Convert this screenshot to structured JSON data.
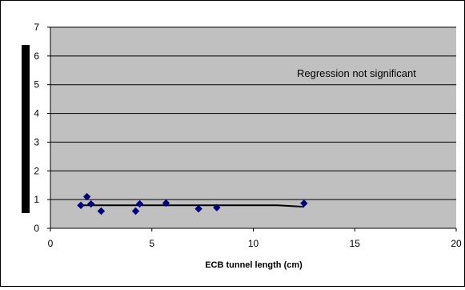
{
  "chart_data": {
    "type": "scatter",
    "title": "",
    "xlabel": "ECB tunnel length (cm)",
    "ylabel": "",
    "xlim": [
      0,
      20
    ],
    "ylim": [
      0,
      7
    ],
    "xticks": [
      "0",
      "5",
      "10",
      "15",
      "20"
    ],
    "yticks": [
      "0",
      "1",
      "2",
      "3",
      "4",
      "5",
      "6",
      "7"
    ],
    "grid": "horizontal",
    "legend": "none",
    "annotation": "Regression not significant",
    "colors": {
      "plot_bg": "#c0c0c0",
      "marker": "#000080",
      "trend": "#000000",
      "gridline": "#000000"
    },
    "series": [
      {
        "points": [
          {
            "x": 1.5,
            "y": 0.8
          },
          {
            "x": 1.8,
            "y": 1.1
          },
          {
            "x": 2.0,
            "y": 0.85
          },
          {
            "x": 2.5,
            "y": 0.6
          },
          {
            "x": 4.2,
            "y": 0.6
          },
          {
            "x": 4.4,
            "y": 0.85
          },
          {
            "x": 5.7,
            "y": 0.88
          },
          {
            "x": 7.3,
            "y": 0.68
          },
          {
            "x": 8.2,
            "y": 0.72
          },
          {
            "x": 12.5,
            "y": 0.87
          }
        ]
      }
    ],
    "trendline": [
      {
        "x": 1.5,
        "y": 0.8
      },
      {
        "x": 11.2,
        "y": 0.8
      },
      {
        "x": 12.5,
        "y": 0.75
      }
    ]
  }
}
